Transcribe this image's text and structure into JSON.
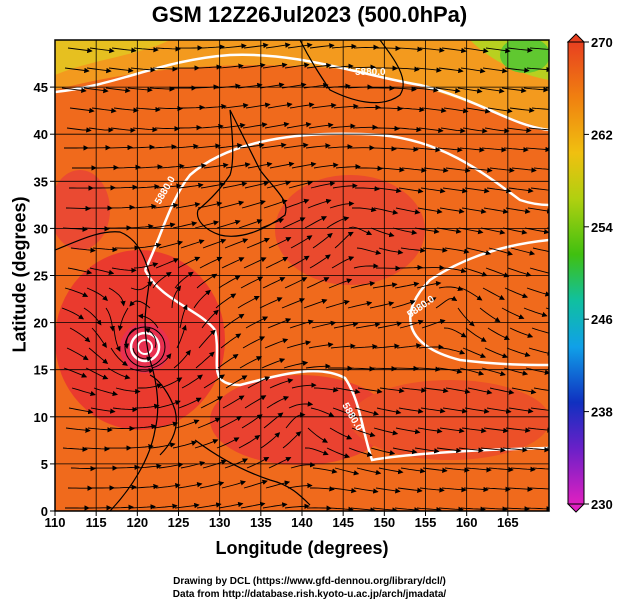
{
  "title": "GSM 12Z26Jul2023 (500.0hPa)",
  "axes": {
    "xlabel": "Longitude (degrees)",
    "ylabel": "Latitude  (degrees)",
    "xticks": [
      "110",
      "115",
      "120",
      "125",
      "130",
      "135",
      "140",
      "145",
      "150",
      "155",
      "160",
      "165"
    ],
    "yticks": [
      "0",
      "5",
      "10",
      "15",
      "20",
      "25",
      "30",
      "35",
      "40",
      "45"
    ],
    "xrange": [
      110,
      170
    ],
    "yrange": [
      0,
      50
    ]
  },
  "colorbar": {
    "ticks": [
      "230",
      "238",
      "246",
      "254",
      "262",
      "270"
    ],
    "range": [
      230,
      270
    ],
    "colors": [
      "#e020c0",
      "#6a20c8",
      "#1030c0",
      "#10a0e8",
      "#10c0a0",
      "#40c010",
      "#b0d010",
      "#f0c010",
      "#f08010",
      "#e84020"
    ]
  },
  "contour_labels": [
    "5880.0",
    "5880.0",
    "5880.0",
    "5880.0"
  ],
  "credits": {
    "line1": "Drawing by DCL (https://www.gfd-dennou.org/library/dcl/)",
    "line2": "Data from http://database.rish.kyoto-u.ac.jp/arch/jmadata/"
  }
}
